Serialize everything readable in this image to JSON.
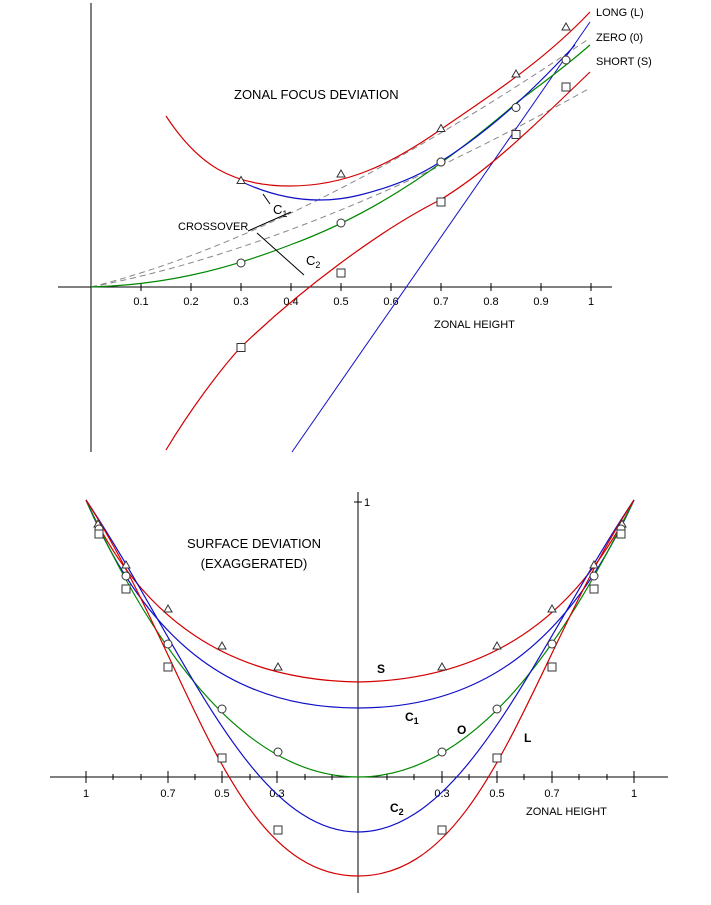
{
  "chart_data": [
    {
      "type": "line",
      "title": "ZONAL FOCUS DEVIATION",
      "xlabel": "ZONAL HEIGHT",
      "xticks": [
        "0.1",
        "0.2",
        "0.3",
        "0.4",
        "0.5",
        "0.6",
        "0.7",
        "0.8",
        "0.9",
        "1"
      ],
      "annotation": "CROSSOVER",
      "colors": {
        "long": "#d40000",
        "zero": "#008800",
        "short": "#d40000",
        "c1": "#1010c8",
        "c2": "#1010c8",
        "dashed": "#808080"
      },
      "series": [
        {
          "name": "LONG (L)",
          "marker": "triangle",
          "x": [
            0.3,
            0.5,
            0.7,
            0.85,
            0.95
          ],
          "y": [
            0.213,
            0.226,
            0.317,
            0.426,
            0.52
          ]
        },
        {
          "name": "ZERO (0)",
          "marker": "circle",
          "x": [
            0.3,
            0.5,
            0.7,
            0.85,
            0.95
          ],
          "y": [
            0.048,
            0.128,
            0.25,
            0.359,
            0.454
          ]
        },
        {
          "name": "SHORT (S)",
          "marker": "square",
          "x": [
            0.3,
            0.5,
            0.7,
            0.85,
            0.95
          ],
          "y": [
            -0.121,
            0.028,
            0.17,
            0.305,
            0.4
          ]
        }
      ],
      "curves": [
        {
          "name": "C1",
          "label": "C",
          "sub": "1"
        },
        {
          "name": "C2",
          "label": "C",
          "sub": "2"
        }
      ]
    },
    {
      "type": "line",
      "title": "SURFACE DEVIATION",
      "subtitle": "(EXAGGERATED)",
      "xlabel": "ZONAL HEIGHT",
      "xticks": [
        "1",
        "0.7",
        "0.5",
        "0.3",
        "0.3",
        "0.5",
        "0.7",
        "1"
      ],
      "ytick": "1",
      "series": [
        {
          "name": "S",
          "label": "S",
          "marker": "triangle"
        },
        {
          "name": "C1",
          "label": "C",
          "sub": "1"
        },
        {
          "name": "O",
          "label": "O",
          "marker": "circle"
        },
        {
          "name": "C2",
          "label": "C",
          "sub": "2"
        },
        {
          "name": "L",
          "label": "L",
          "marker": "square"
        }
      ]
    }
  ]
}
